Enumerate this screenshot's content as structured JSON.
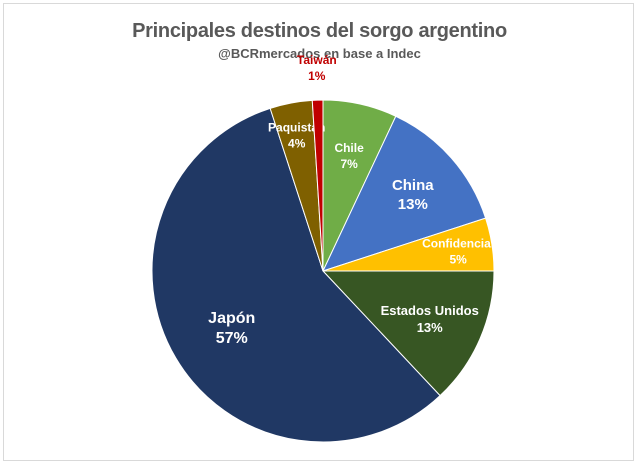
{
  "chart_data": {
    "type": "pie",
    "title": "Principales destinos del sorgo argentino",
    "subtitle": "@BCRmercados en base a Indec",
    "slices": [
      {
        "label": "Chile",
        "value_label": "7%",
        "value": 7,
        "color": "#70ad47",
        "text_color": "#ffffff"
      },
      {
        "label": "China",
        "value_label": "13%",
        "value": 13,
        "color": "#4472c4",
        "text_color": "#ffffff"
      },
      {
        "label": "Confidencial",
        "value_label": "5%",
        "value": 5,
        "color": "#ffc000",
        "text_color": "#ffffff"
      },
      {
        "label": "Estados Unidos",
        "value_label": "13%",
        "value": 13,
        "color": "#375623",
        "text_color": "#ffffff"
      },
      {
        "label": "Japón",
        "value_label": "57%",
        "value": 57,
        "color": "#203864",
        "text_color": "#ffffff"
      },
      {
        "label": "Paquistán",
        "value_label": "4%",
        "value": 4,
        "color": "#7f6000",
        "text_color": "#ffffff"
      },
      {
        "label": "Taiwán",
        "value_label": "1%",
        "value": 1,
        "color": "#c00000",
        "text_color": "#c00000"
      }
    ],
    "start_angle_deg": 0,
    "direction": "clockwise"
  }
}
